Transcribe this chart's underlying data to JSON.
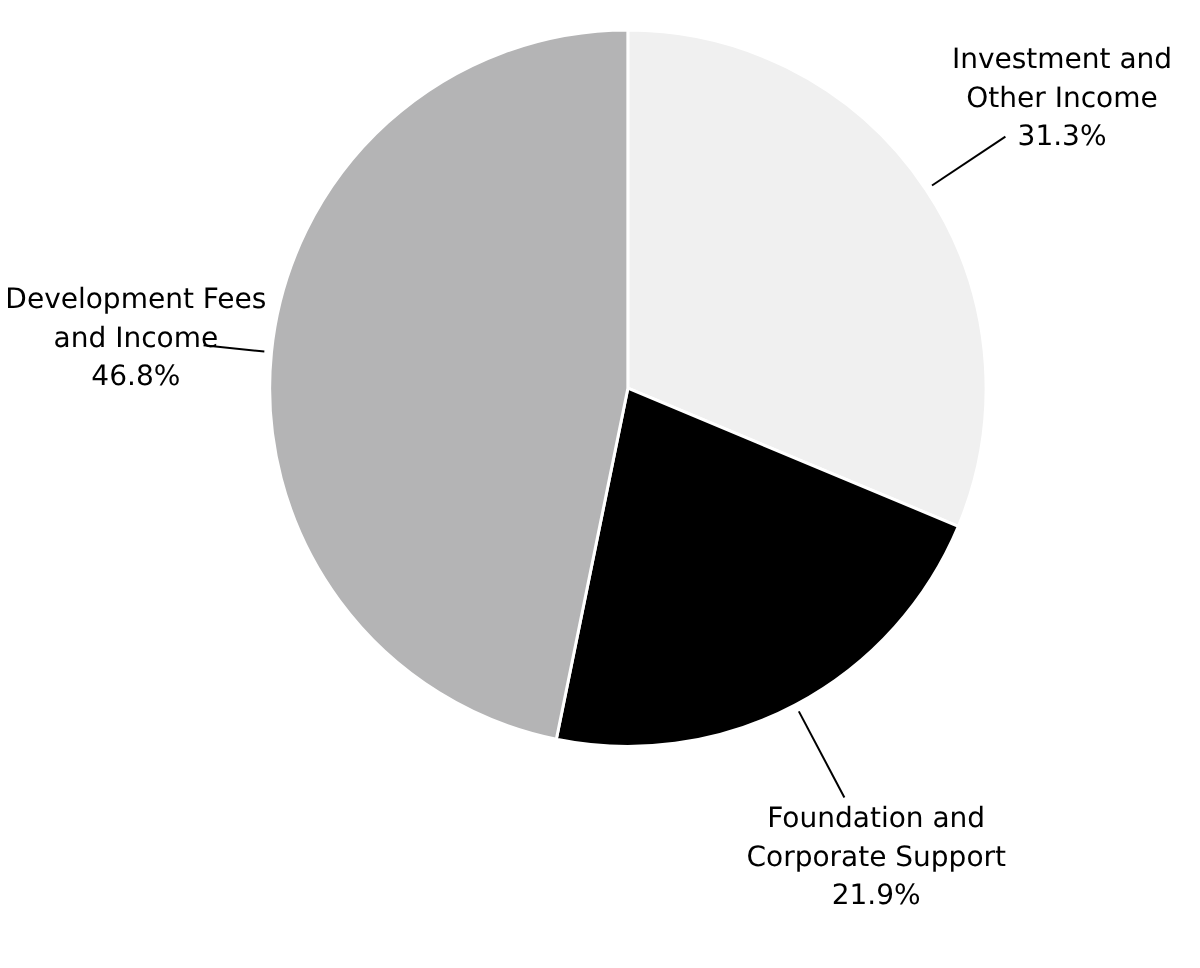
{
  "chart_data": {
    "type": "pie",
    "categories": [
      "Investment and Other Income",
      "Foundation and Corporate Support",
      "Development Fees and Income"
    ],
    "values": [
      31.3,
      21.9,
      46.8
    ],
    "value_labels": [
      "31.3%",
      "21.9%",
      "46.8%"
    ],
    "colors": [
      "#f0f0f0",
      "#000000",
      "#b4b4b5"
    ]
  }
}
